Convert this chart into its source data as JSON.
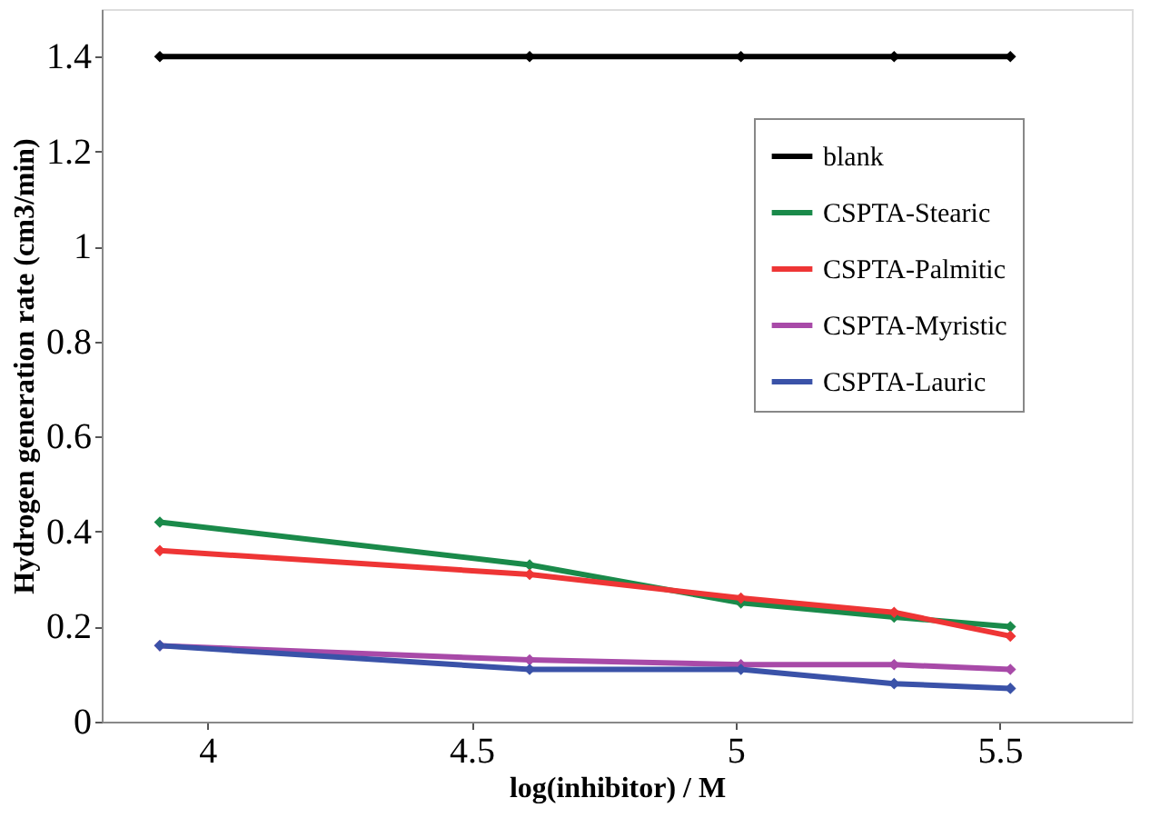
{
  "chart_data": {
    "type": "line",
    "xlabel": "log(inhibitor) / M",
    "ylabel": "Hydrogen generation rate (cm3/min)",
    "x": [
      3.91,
      4.61,
      5.01,
      5.3,
      5.52
    ],
    "series": [
      {
        "name": "blank",
        "color": "#000000",
        "values": [
          1.4,
          1.4,
          1.4,
          1.4,
          1.4
        ]
      },
      {
        "name": "CSPTA-Stearic",
        "color": "#1a8a4a",
        "values": [
          0.42,
          0.33,
          0.25,
          0.22,
          0.2
        ]
      },
      {
        "name": "CSPTA-Palmitic",
        "color": "#ee3535",
        "values": [
          0.36,
          0.31,
          0.26,
          0.23,
          0.18
        ]
      },
      {
        "name": "CSPTA-Myristic",
        "color": "#a84aa8",
        "values": [
          0.16,
          0.13,
          0.12,
          0.12,
          0.11
        ]
      },
      {
        "name": "CSPTA-Lauric",
        "color": "#3a52a8",
        "values": [
          0.16,
          0.11,
          0.11,
          0.08,
          0.07
        ]
      }
    ],
    "xlim": [
      3.8,
      5.75
    ],
    "xticks": [
      4,
      4.5,
      5,
      5.5
    ],
    "ylim": [
      0,
      1.5
    ],
    "yticks": [
      0,
      0.2,
      0.4,
      0.6,
      0.8,
      1,
      1.2,
      1.4
    ],
    "grid": false,
    "legend": "top right",
    "marker": "diamond",
    "line_style": "solid"
  }
}
